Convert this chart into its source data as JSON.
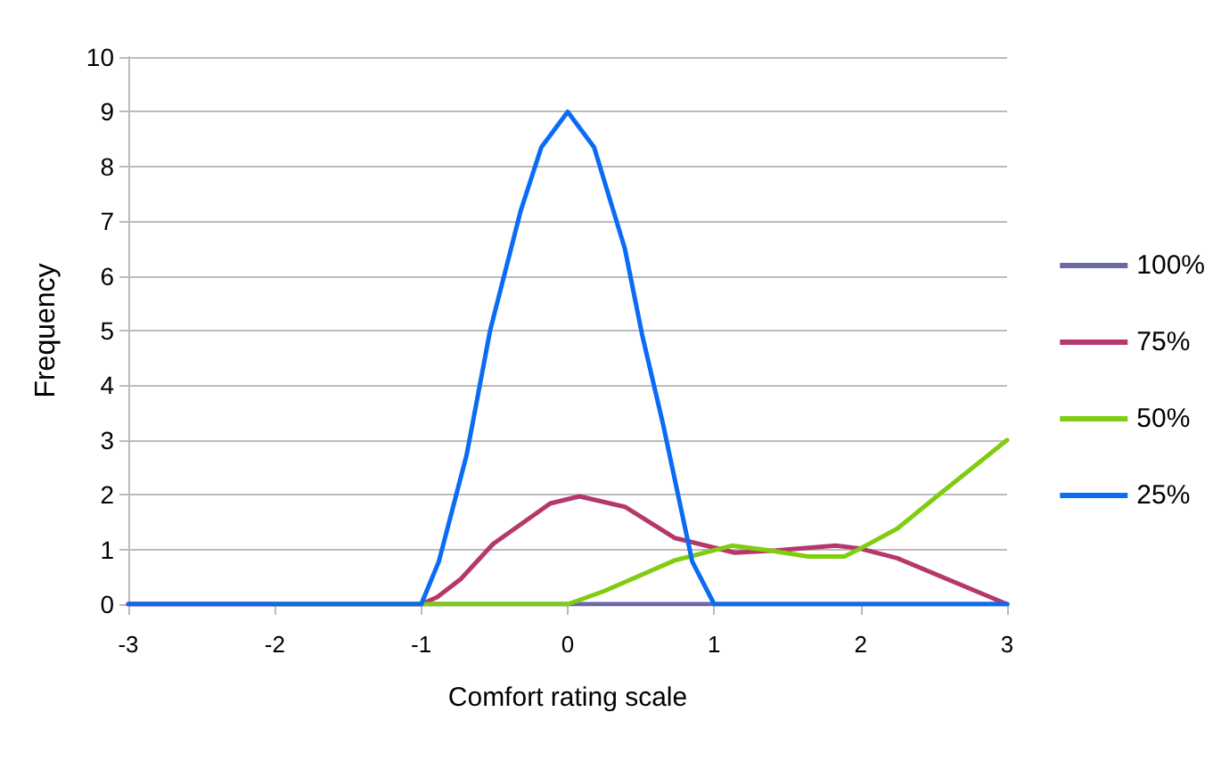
{
  "chart_data": {
    "type": "line",
    "xlabel": "Comfort rating scale",
    "ylabel": "Frequency",
    "xlim": [
      -3,
      3
    ],
    "xticks": [
      -3,
      -2,
      -1,
      0,
      1,
      2,
      3
    ],
    "ylim": [
      0,
      10
    ],
    "yticks": [
      0,
      1,
      2,
      3,
      4,
      5,
      6,
      7,
      8,
      9,
      10
    ],
    "grid": "y",
    "legend": "right",
    "marker": "none",
    "line_style": "solid",
    "series": [
      {
        "name": "100%",
        "color": "#6b68a8",
        "x": [
          -3,
          -2,
          -1,
          0,
          1,
          2,
          3
        ],
        "values": [
          0,
          0,
          0,
          0,
          0,
          0,
          0
        ]
      },
      {
        "name": "75%",
        "color": "#b5386b",
        "x": [
          -3,
          -2,
          -1,
          -0.89,
          -0.73,
          -0.51,
          -0.12,
          0.08,
          0.39,
          0.73,
          1.14,
          1.42,
          1.83,
          1.99,
          2.25,
          3
        ],
        "values": [
          0,
          0,
          0,
          0.13,
          0.46,
          1.1,
          1.84,
          1.97,
          1.78,
          1.21,
          0.94,
          0.98,
          1.07,
          1.02,
          0.84,
          0
        ]
      },
      {
        "name": "50%",
        "color": "#80cc10",
        "x": [
          -2,
          -1,
          0,
          0.25,
          0.73,
          1.12,
          1.38,
          1.64,
          1.89,
          2,
          2.25,
          2.52,
          3
        ],
        "values": [
          0,
          0,
          0,
          0.24,
          0.8,
          1.07,
          0.98,
          0.87,
          0.87,
          1.02,
          1.38,
          1.97,
          3
        ]
      },
      {
        "name": "25%",
        "color": "#0a6cf5",
        "x": [
          -3,
          -2,
          -1,
          -0.88,
          -0.69,
          -0.53,
          -0.32,
          -0.18,
          0,
          0.18,
          0.39,
          0.51,
          0.65,
          0.85,
          1,
          2,
          3
        ],
        "values": [
          0,
          0,
          0,
          0.78,
          2.73,
          5,
          7.2,
          8.35,
          9,
          8.35,
          6.5,
          4.9,
          3.3,
          0.78,
          0,
          0,
          0
        ]
      }
    ]
  }
}
